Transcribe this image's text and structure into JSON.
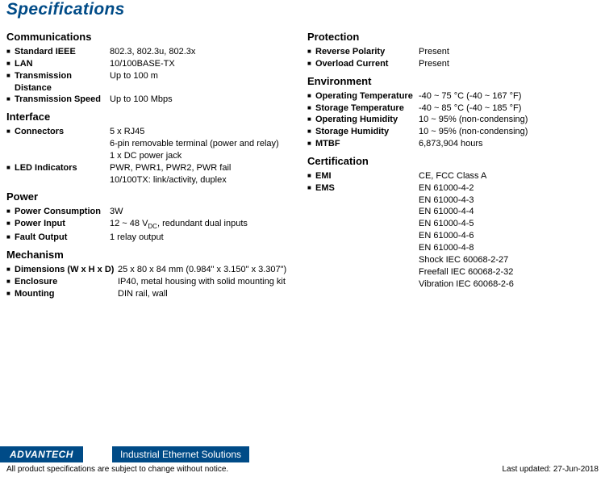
{
  "title": "Specifications",
  "footer": {
    "logo": "ADVANTECH",
    "tagline": "Industrial Ethernet Solutions",
    "disclaimer": "All product specifications are subject to change without notice.",
    "updated": "Last updated: 27-Jun-2018"
  },
  "left": {
    "communications": {
      "title": "Communications",
      "ieee_label": "Standard IEEE",
      "ieee_value": "802.3, 802.3u, 802.3x",
      "lan_label": "LAN",
      "lan_value": "10/100BASE-TX",
      "dist_label": "Transmission Distance",
      "dist_value": "Up to 100 m",
      "speed_label": "Transmission Speed",
      "speed_value": "Up to 100 Mbps"
    },
    "interface": {
      "title": "Interface",
      "conn_label": "Connectors",
      "conn_v1": "5 x RJ45",
      "conn_v2": "6-pin removable terminal (power and relay)",
      "conn_v3": "1 x DC power jack",
      "led_label": "LED Indicators",
      "led_v1": "PWR, PWR1, PWR2, PWR fail",
      "led_v2": "10/100TX: link/activity, duplex"
    },
    "power": {
      "title": "Power",
      "cons_label": "Power Consumption",
      "cons_value": "3W",
      "input_label": "Power Input",
      "input_pre": "12 ~ 48 V",
      "input_sub": "DC",
      "input_post": ", redundant dual inputs",
      "fault_label": "Fault Output",
      "fault_value": "1 relay output"
    },
    "mech": {
      "title": "Mechanism",
      "dim_label": "Dimensions (W x H x D)",
      "dim_value": "25 x 80 x 84 mm (0.984\" x 3.150\" x 3.307\")",
      "enc_label": "Enclosure",
      "enc_value": "IP40, metal housing with solid mounting kit",
      "mount_label": "Mounting",
      "mount_value": "DIN rail, wall"
    }
  },
  "right": {
    "protection": {
      "title": "Protection",
      "rev_label": "Reverse Polarity",
      "rev_value": "Present",
      "over_label": "Overload Current",
      "over_value": "Present"
    },
    "env": {
      "title": "Environment",
      "optemp_label": "Operating Temperature",
      "optemp_value": "-40 ~ 75 °C (-40 ~ 167 °F)",
      "sttemp_label": "Storage Temperature",
      "sttemp_value": "-40 ~ 85 °C (-40 ~ 185 °F)",
      "ophum_label": "Operating Humidity",
      "ophum_value": "10 ~ 95% (non-condensing)",
      "sthum_label": "Storage Humidity",
      "sthum_value": "10 ~ 95% (non-condensing)",
      "mtbf_label": "MTBF",
      "mtbf_value": "6,873,904 hours"
    },
    "cert": {
      "title": "Certification",
      "emi_label": "EMI",
      "emi_value": "CE, FCC Class A",
      "ems_label": "EMS",
      "ems_1": "EN 61000-4-2",
      "ems_2": "EN 61000-4-3",
      "ems_3": "EN 61000-4-4",
      "ems_4": "EN 61000-4-5",
      "ems_5": "EN 61000-4-6",
      "ems_6": "EN 61000-4-8",
      "ems_7": "Shock IEC 60068-2-27",
      "ems_8": "Freefall IEC 60068-2-32",
      "ems_9": "Vibration IEC 60068-2-6"
    }
  }
}
